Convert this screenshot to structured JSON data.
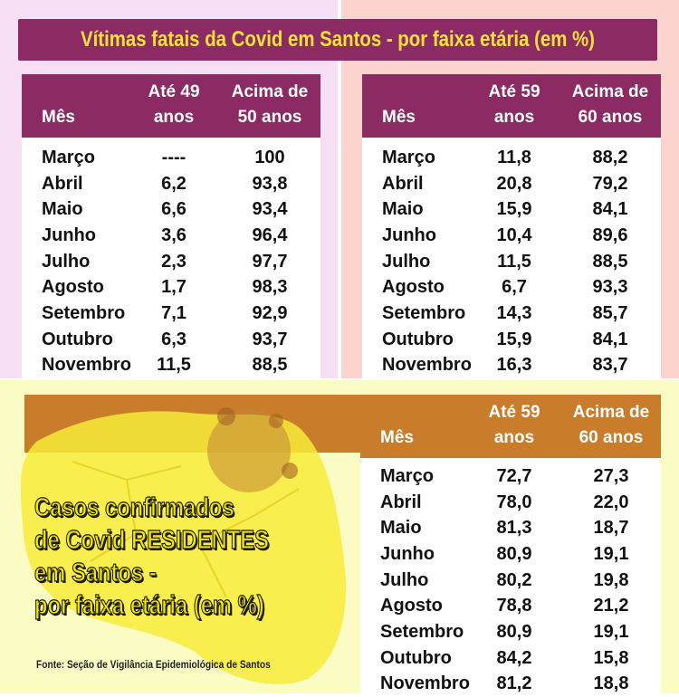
{
  "title": "Vítimas fatais da Covid em Santos - por faixa etária  (em %)",
  "table_left": {
    "headers": {
      "month": "Mês",
      "col1": [
        "Até 49",
        "anos"
      ],
      "col2": [
        "Acima de",
        "50 anos"
      ]
    },
    "rows": [
      {
        "month": "Março",
        "v1": "----",
        "v2": "100"
      },
      {
        "month": "Abril",
        "v1": "6,2",
        "v2": "93,8"
      },
      {
        "month": "Maio",
        "v1": "6,6",
        "v2": "93,4"
      },
      {
        "month": "Junho",
        "v1": "3,6",
        "v2": "96,4"
      },
      {
        "month": "Julho",
        "v1": "2,3",
        "v2": "97,7"
      },
      {
        "month": "Agosto",
        "v1": "1,7",
        "v2": "98,3"
      },
      {
        "month": "Setembro",
        "v1": "7,1",
        "v2": "92,9"
      },
      {
        "month": "Outubro",
        "v1": "6,3",
        "v2": "93,7"
      },
      {
        "month": "Novembro",
        "v1": "11,5",
        "v2": "88,5"
      }
    ]
  },
  "table_right": {
    "headers": {
      "month": "Mês",
      "col1": [
        "Até 59",
        "anos"
      ],
      "col2": [
        "Acima de",
        "60 anos"
      ]
    },
    "rows": [
      {
        "month": "Março",
        "v1": "11,8",
        "v2": "88,2"
      },
      {
        "month": "Abril",
        "v1": "20,8",
        "v2": "79,2"
      },
      {
        "month": "Maio",
        "v1": "15,9",
        "v2": "84,1"
      },
      {
        "month": "Junho",
        "v1": "10,4",
        "v2": "89,6"
      },
      {
        "month": "Julho",
        "v1": "11,5",
        "v2": "88,5"
      },
      {
        "month": "Agosto",
        "v1": "6,7",
        "v2": "93,3"
      },
      {
        "month": "Setembro",
        "v1": "14,3",
        "v2": "85,7"
      },
      {
        "month": "Outubro",
        "v1": "15,9",
        "v2": "84,1"
      },
      {
        "month": "Novembro",
        "v1": "16,3",
        "v2": "83,7"
      }
    ]
  },
  "table_bottom": {
    "headers": {
      "month": "Mês",
      "col1": [
        "Até 59",
        "anos"
      ],
      "col2": [
        "Acima de",
        "60 anos"
      ]
    },
    "rows": [
      {
        "month": "Março",
        "v1": "72,7",
        "v2": "27,3"
      },
      {
        "month": "Abril",
        "v1": "78,0",
        "v2": "22,0"
      },
      {
        "month": "Maio",
        "v1": "81,3",
        "v2": "18,7"
      },
      {
        "month": "Junho",
        "v1": "80,9",
        "v2": "19,1"
      },
      {
        "month": "Julho",
        "v1": "80,2",
        "v2": "19,8"
      },
      {
        "month": "Agosto",
        "v1": "78,8",
        "v2": "21,2"
      },
      {
        "month": "Setembro",
        "v1": "80,9",
        "v2": "19,1"
      },
      {
        "month": "Outubro",
        "v1": "84,2",
        "v2": "15,8"
      },
      {
        "month": "Novembro",
        "v1": "81,2",
        "v2": "18,8"
      }
    ]
  },
  "casos_lines": [
    "Casos confirmados",
    "de Covid RESIDENTES",
    "em Santos -",
    "por faixa etária (em %)"
  ],
  "fonte": "Fonte: Seção de Vigilância Epidemiológica de Santos",
  "colors": {
    "title_bg": "#8c2a63",
    "title_text": "#f7e13b",
    "panel_left": "#f6def4",
    "panel_right": "#fbd3cf",
    "panel_bottom": "#fbfbc4",
    "header_bottom": "#c97d2b"
  }
}
